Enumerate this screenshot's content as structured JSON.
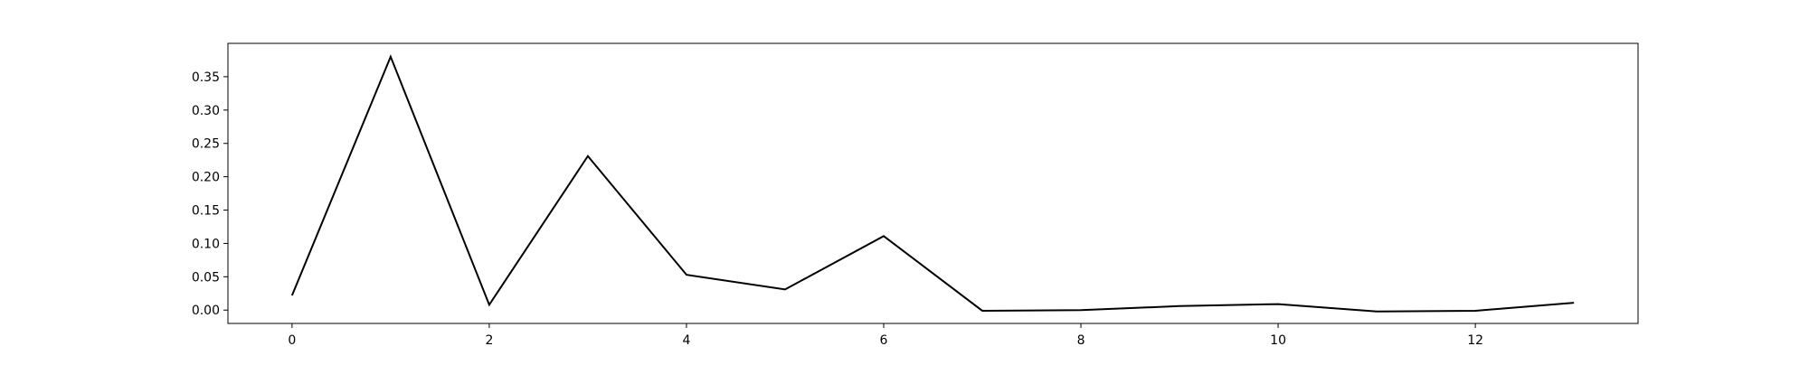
{
  "chart_data": {
    "type": "line",
    "title": "",
    "xlabel": "",
    "ylabel": "",
    "x": [
      0,
      1,
      2,
      3,
      4,
      5,
      6,
      7,
      8,
      9,
      10,
      11,
      12,
      13
    ],
    "series": [
      {
        "values": [
          0.022,
          0.38,
          0.008,
          0.231,
          0.053,
          0.031,
          0.111,
          -0.001,
          0.0,
          0.006,
          0.009,
          -0.002,
          -0.001,
          0.011
        ],
        "color": "#000000"
      }
    ],
    "xlim": [
      -0.65,
      13.65
    ],
    "ylim": [
      -0.02,
      0.4
    ],
    "xticks": [
      0,
      2,
      4,
      6,
      8,
      10,
      12
    ],
    "yticks": [
      0.0,
      0.05,
      0.1,
      0.15,
      0.2,
      0.25,
      0.3,
      0.35
    ],
    "xtick_labels": [
      "0",
      "2",
      "4",
      "6",
      "8",
      "10",
      "12"
    ],
    "ytick_labels": [
      "0.00",
      "0.05",
      "0.10",
      "0.15",
      "0.20",
      "0.25",
      "0.30",
      "0.35"
    ],
    "grid": false,
    "legend": "none"
  }
}
